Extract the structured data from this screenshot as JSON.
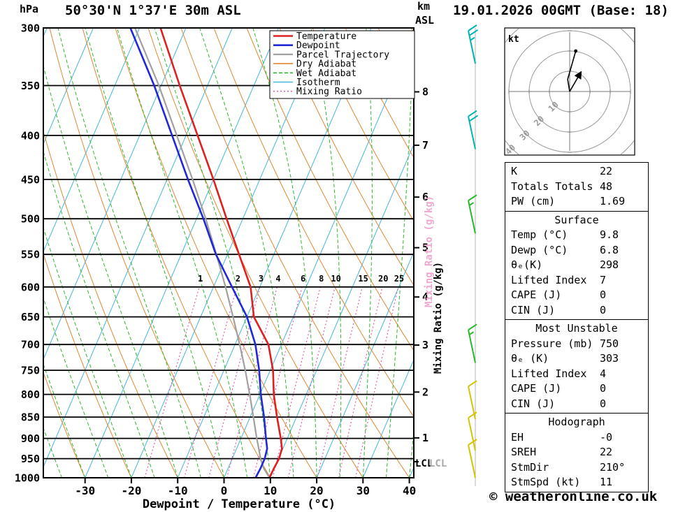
{
  "titles": {
    "location": "50°30'N 1°37'E 30m ASL",
    "datetime": "19.01.2026 00GMT (Base: 18)",
    "copyright": "© weatheronline.co.uk"
  },
  "axes": {
    "pressure_unit": "hPa",
    "altitude_unit_line1": "km",
    "altitude_unit_line2": "ASL",
    "x_title": "Dewpoint / Temperature (°C)",
    "mixing_axis_label": "Mixing Ratio (g/kg)",
    "lcl_label": "LCL",
    "pressure_ticks": [
      300,
      350,
      400,
      450,
      500,
      550,
      600,
      650,
      700,
      750,
      800,
      850,
      900,
      950,
      1000
    ],
    "temp_ticks": [
      -30,
      -20,
      -10,
      0,
      10,
      20,
      30,
      40
    ],
    "km_ticks": [
      8,
      7,
      6,
      5,
      4,
      3,
      2,
      1
    ]
  },
  "legend": {
    "items": [
      {
        "label": "Temperature",
        "color": "#dd2020",
        "dash": "",
        "width": 2.6
      },
      {
        "label": "Dewpoint",
        "color": "#2028d8",
        "dash": "",
        "width": 2.6
      },
      {
        "label": "Parcel Trajectory",
        "color": "#a0a0a0",
        "dash": "",
        "width": 2.2
      },
      {
        "label": "Dry Adiabat",
        "color": "#e08830",
        "dash": "",
        "width": 1
      },
      {
        "label": "Wet Adiabat",
        "color": "#2db82d",
        "dash": "5 3",
        "width": 1
      },
      {
        "label": "Isotherm",
        "color": "#45b6dc",
        "dash": "",
        "width": 1
      },
      {
        "label": "Mixing Ratio",
        "color": "#e060b0",
        "dash": "2 3",
        "width": 1.2
      }
    ]
  },
  "hodograph": {
    "unit_label": "kt",
    "ring_step_kt": 10,
    "ring_labels": [
      10,
      20,
      30,
      40
    ],
    "trace_uv_kt": [
      [
        0,
        0
      ],
      [
        -1,
        6
      ],
      [
        1,
        13
      ],
      [
        3,
        20
      ]
    ],
    "storm_motion": {
      "dir_deg": 210,
      "speed_kt": 11
    }
  },
  "stats": {
    "sections": [
      {
        "header": null,
        "rows": [
          [
            "K",
            "22"
          ],
          [
            "Totals Totals",
            "48"
          ],
          [
            "PW (cm)",
            "1.69"
          ]
        ]
      },
      {
        "header": "Surface",
        "rows": [
          [
            "Temp (°C)",
            "9.8"
          ],
          [
            "Dewp (°C)",
            "6.8"
          ],
          [
            "θₑ(K)",
            "298"
          ],
          [
            "Lifted Index",
            "7"
          ],
          [
            "CAPE (J)",
            "0"
          ],
          [
            "CIN (J)",
            "0"
          ]
        ]
      },
      {
        "header": "Most Unstable",
        "rows": [
          [
            "Pressure (mb)",
            "750"
          ],
          [
            "θₑ (K)",
            "303"
          ],
          [
            "Lifted Index",
            "4"
          ],
          [
            "CAPE (J)",
            "0"
          ],
          [
            "CIN (J)",
            "0"
          ]
        ]
      },
      {
        "header": "Hodograph",
        "rows": [
          [
            "EH",
            "-0"
          ],
          [
            "SREH",
            "22"
          ],
          [
            "StmDir",
            "210°"
          ],
          [
            "StmSpd (kt)",
            "11"
          ]
        ]
      }
    ]
  },
  "chart_data": {
    "type": "skewt-log-p",
    "pressure_range_hpa": [
      300,
      1000
    ],
    "temp_axis_range_c": [
      -39,
      41
    ],
    "isotherm_step_c": 10,
    "dry_adiabat_step_c": 10,
    "wet_adiabat_step_c": 5,
    "mixing_ratio_lines_gkg": [
      1,
      2,
      3,
      4,
      6,
      8,
      10,
      15,
      20,
      25
    ],
    "mixing_label_color": "#dd22aa",
    "lcl_pressure_hpa": 958,
    "sounding": {
      "pressure_hpa": [
        1000,
        975,
        950,
        925,
        900,
        850,
        800,
        750,
        700,
        650,
        600,
        550,
        500,
        450,
        400,
        350,
        300
      ],
      "temperature_c": [
        9.8,
        9.9,
        10.1,
        9.8,
        8.6,
        5.8,
        3.0,
        0.6,
        -2.8,
        -8.5,
        -12.0,
        -17.5,
        -23.5,
        -30.0,
        -37.5,
        -46.0,
        -55.5
      ],
      "dewpoint_c": [
        6.8,
        7.0,
        7.0,
        6.6,
        5.4,
        3.0,
        0.2,
        -2.4,
        -5.6,
        -10.0,
        -16.0,
        -22.5,
        -28.5,
        -35.5,
        -43.0,
        -51.5,
        -62.0
      ],
      "parcel_c": [
        9.8,
        7.7,
        6.1,
        4.8,
        3.4,
        0.7,
        -2.2,
        -5.4,
        -9.0,
        -13.0,
        -17.4,
        -22.4,
        -28.0,
        -34.5,
        -42.0,
        -50.5,
        -61.0
      ]
    },
    "wind_barbs": [
      {
        "pressure_hpa": 330,
        "speed_kt": 25,
        "color": "#00b4b4"
      },
      {
        "pressure_hpa": 415,
        "speed_kt": 20,
        "color": "#00b4b4"
      },
      {
        "pressure_hpa": 520,
        "speed_kt": 15,
        "color": "#28b828"
      },
      {
        "pressure_hpa": 735,
        "speed_kt": 15,
        "color": "#28b828"
      },
      {
        "pressure_hpa": 855,
        "speed_kt": 10,
        "color": "#d4c400"
      },
      {
        "pressure_hpa": 930,
        "speed_kt": 10,
        "color": "#d4c400"
      },
      {
        "pressure_hpa": 1000,
        "speed_kt": 10,
        "color": "#d4c400"
      }
    ]
  }
}
